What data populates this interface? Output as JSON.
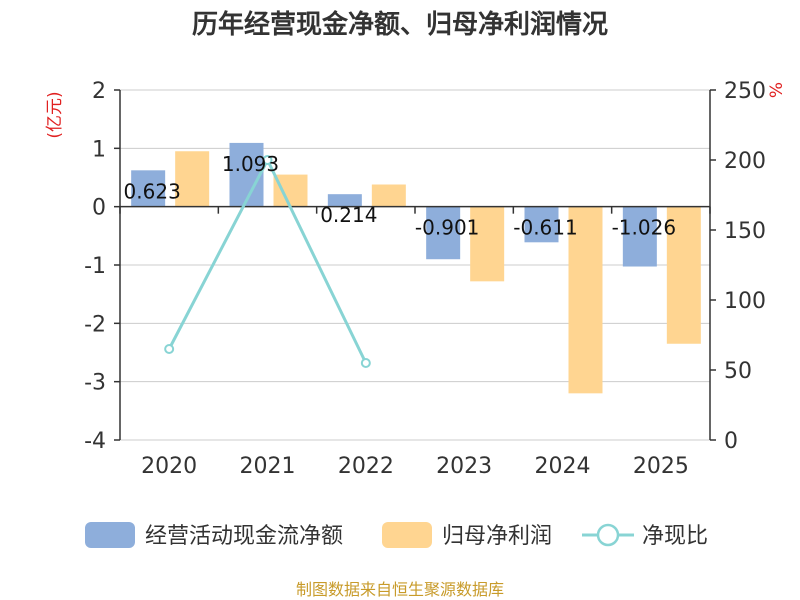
{
  "chart_data": {
    "type": "bar",
    "title": "历年经营现金净额、归母净利润情况",
    "categories": [
      "2020",
      "2021",
      "2022",
      "2023",
      "2024",
      "2025"
    ],
    "series": [
      {
        "name": "经营活动现金流净额",
        "axis": "left",
        "type": "bar",
        "color": "#8eaedb",
        "values": [
          0.623,
          1.093,
          0.214,
          -0.901,
          -0.611,
          -1.026
        ]
      },
      {
        "name": "归母净利润",
        "axis": "left",
        "type": "bar",
        "color": "#ffd591",
        "values": [
          0.95,
          0.55,
          0.38,
          -1.28,
          -3.2,
          -2.35
        ]
      },
      {
        "name": "净现比",
        "axis": "right",
        "type": "line",
        "color": "#88d4d4",
        "values": [
          65,
          200,
          55,
          null,
          null,
          null
        ]
      }
    ],
    "data_labels": [
      "0.623",
      "1.093",
      "0.214",
      "-0.901",
      "-0.611",
      "-1.026"
    ],
    "left_axis": {
      "unit": "(亿元)",
      "min": -4,
      "max": 2,
      "ticks": [
        2,
        1,
        0,
        -1,
        -2,
        -3,
        -4
      ]
    },
    "right_axis": {
      "unit": "%",
      "min": 0,
      "max": 250,
      "ticks": [
        250,
        200,
        150,
        100,
        50,
        0
      ]
    },
    "legend_position": "bottom",
    "source": "制图数据来自恒生聚源数据库"
  }
}
